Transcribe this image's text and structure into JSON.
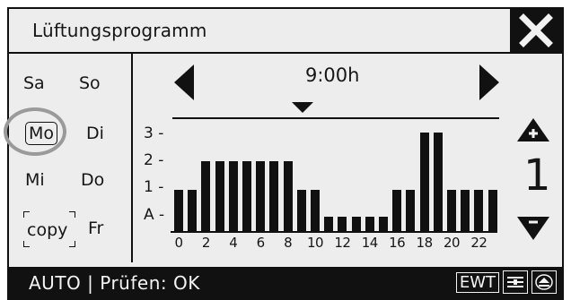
{
  "title": "Lüftungsprogramm",
  "icons": {
    "close": "close-x-icon",
    "prev": "arrow-left-icon",
    "next": "arrow-right-icon",
    "up": "arrow-up-plus-icon",
    "down": "arrow-down-minus-icon",
    "marker": "time-marker-icon",
    "filter": "filter-settings-icon",
    "eject": "eject-icon"
  },
  "days": {
    "sa": "Sa",
    "so": "So",
    "mo": "Mo",
    "di": "Di",
    "mi": "Mi",
    "do": "Do",
    "copy": "copy",
    "fr": "Fr"
  },
  "selected_day": "Mo",
  "time": "9:00h",
  "y_axis": {
    "l3": "3",
    "l2": "2",
    "l1": "1",
    "la": "A"
  },
  "x_ticks": [
    "0",
    "2",
    "4",
    "6",
    "8",
    "10",
    "12",
    "14",
    "16",
    "18",
    "20",
    "22"
  ],
  "chart_data": {
    "type": "bar",
    "x": [
      "0",
      "1",
      "2",
      "3",
      "4",
      "5",
      "6",
      "7",
      "8",
      "9",
      "10",
      "11",
      "12",
      "13",
      "14",
      "15",
      "16",
      "17",
      "18",
      "19",
      "20",
      "21",
      "22",
      "23"
    ],
    "values": [
      1,
      1,
      2,
      2,
      2,
      2,
      2,
      2,
      2,
      1,
      1,
      0,
      0,
      0,
      0,
      0,
      1,
      1,
      3,
      3,
      1,
      1,
      1,
      1
    ],
    "ylevels": [
      "A",
      "1",
      "2",
      "3"
    ]
  },
  "level_value": "1",
  "status": {
    "mode": "AUTO",
    "separator": "|",
    "check": "Prüfen: OK",
    "ewt": "EWT"
  },
  "colors": {
    "foreground": "#111111",
    "background": "#ededed",
    "highlight_ring": "#9a9a9a"
  }
}
